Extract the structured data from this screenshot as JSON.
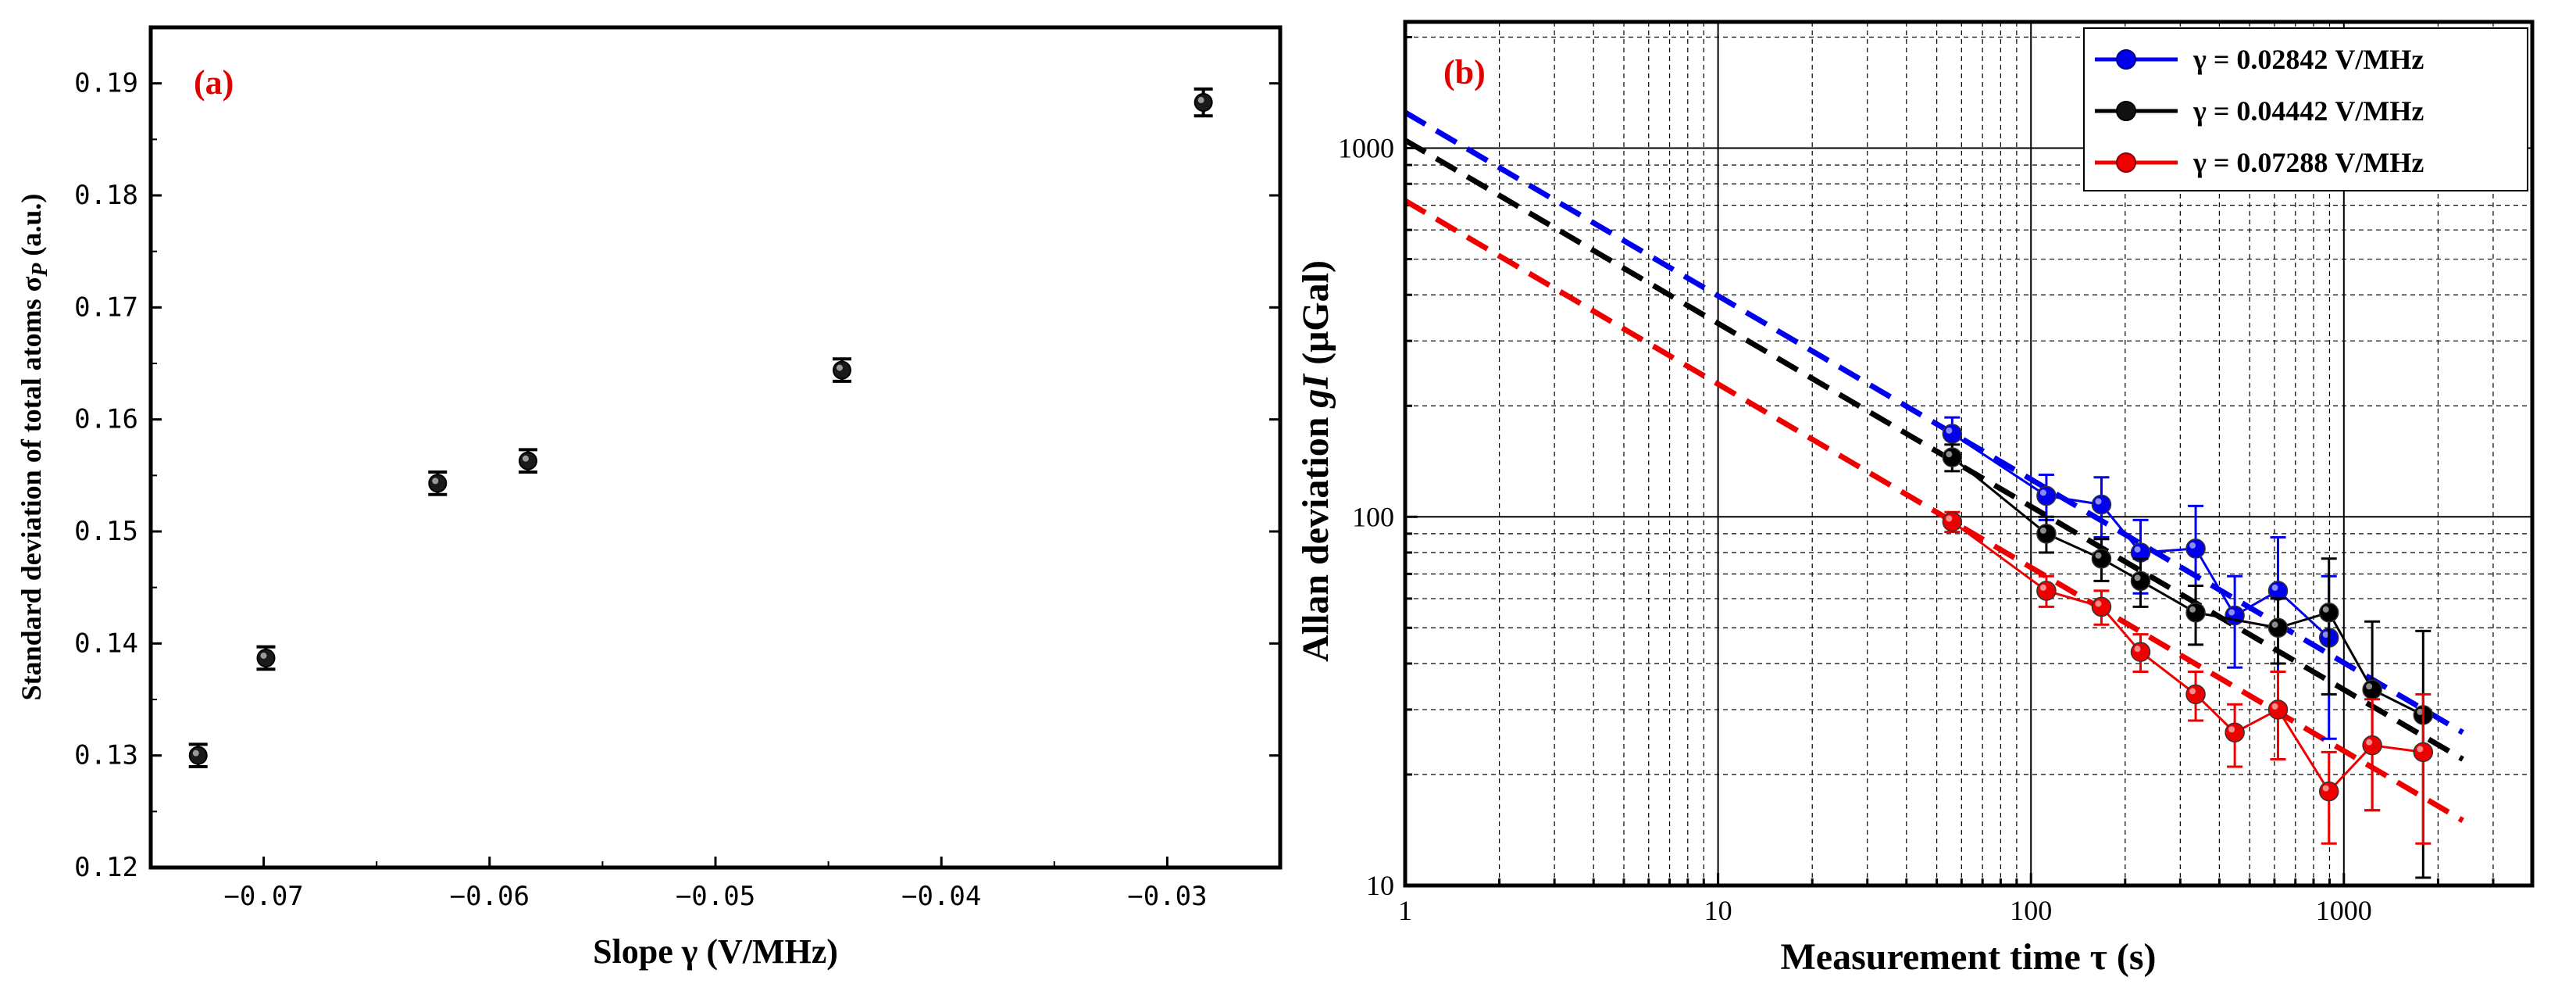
{
  "chart_data": [
    {
      "panel_label": "(a)",
      "type": "scatter",
      "xlabel": "Slope γ (V/MHz)",
      "ylabel": "Standard deviation of  total atoms σP (a.u.)",
      "ylabel_main": "Standard deviation of  total atoms σ",
      "ylabel_sub": "P",
      "ylabel_tail": " (a.u.)",
      "xlim": [
        -0.075,
        -0.025
      ],
      "ylim": [
        0.12,
        0.195
      ],
      "xticks": [
        {
          "value": -0.07,
          "label": "−0.07"
        },
        {
          "value": -0.06,
          "label": "−0.06"
        },
        {
          "value": -0.05,
          "label": "−0.05"
        },
        {
          "value": -0.04,
          "label": "−0.04"
        },
        {
          "value": -0.03,
          "label": "−0.03"
        }
      ],
      "yticks": [
        {
          "value": 0.12,
          "label": "0.12"
        },
        {
          "value": 0.13,
          "label": "0.13"
        },
        {
          "value": 0.14,
          "label": "0.14"
        },
        {
          "value": 0.15,
          "label": "0.15"
        },
        {
          "value": 0.16,
          "label": "0.16"
        },
        {
          "value": 0.17,
          "label": "0.17"
        },
        {
          "value": 0.18,
          "label": "0.18"
        },
        {
          "value": 0.19,
          "label": "0.19"
        }
      ],
      "points": [
        {
          "x": -0.0729,
          "y": 0.13,
          "err": 0.001
        },
        {
          "x": -0.0699,
          "y": 0.1387,
          "err": 0.001
        },
        {
          "x": -0.0623,
          "y": 0.1543,
          "err": 0.001
        },
        {
          "x": -0.0583,
          "y": 0.1563,
          "err": 0.001
        },
        {
          "x": -0.0444,
          "y": 0.1644,
          "err": 0.001
        },
        {
          "x": -0.0284,
          "y": 0.1883,
          "err": 0.0012
        }
      ],
      "marker_color": "#1a1a1a"
    },
    {
      "panel_label": "(b)",
      "type": "line",
      "xscale": "log",
      "yscale": "log",
      "xlabel": "Measurement time τ (s)",
      "ylabel": "Allan deviation gI (μGal)",
      "ylabel_main": "Allan deviation ",
      "ylabel_var": "gI",
      "ylabel_tail": " (μGal)",
      "xlim": [
        1,
        4000
      ],
      "ylim": [
        10,
        2200
      ],
      "xticks": [
        {
          "value": 1,
          "label": "1"
        },
        {
          "value": 10,
          "label": "10"
        },
        {
          "value": 100,
          "label": "100"
        },
        {
          "value": 1000,
          "label": "1000"
        }
      ],
      "yticks": [
        {
          "value": 10,
          "label": "10"
        },
        {
          "value": 100,
          "label": "100"
        },
        {
          "value": 1000,
          "label": "1000"
        }
      ],
      "legend_position": "top-right",
      "series": [
        {
          "name": "γ = 0.02842 V/MHz",
          "color": "#0000ee",
          "x": [
            56,
            112,
            168,
            224,
            336,
            448,
            616,
            896
          ],
          "y": [
            168,
            114,
            108,
            80,
            82,
            54,
            63,
            47
          ],
          "err": [
            18,
            16,
            20,
            18,
            25,
            15,
            25,
            22
          ],
          "fit": {
            "x0": 1,
            "y0": 1250,
            "x1": 2400,
            "y1": 26
          }
        },
        {
          "name": "γ = 0.04442 V/MHz",
          "color": "#000000",
          "x": [
            56,
            112,
            168,
            224,
            336,
            616,
            896,
            1232,
            1792
          ],
          "y": [
            145,
            90,
            77,
            67,
            55,
            50,
            55,
            34,
            29
          ],
          "err": [
            12,
            10,
            10,
            10,
            10,
            10,
            22,
            18,
            20
          ],
          "fit": {
            "x0": 1,
            "y0": 1050,
            "x1": 2400,
            "y1": 22
          }
        },
        {
          "name": "γ = 0.07288 V/MHz",
          "color": "#ee0000",
          "x": [
            56,
            112,
            168,
            224,
            336,
            448,
            616,
            896,
            1232,
            1792
          ],
          "y": [
            97,
            63,
            57,
            43,
            33,
            26,
            30,
            18,
            24,
            23
          ],
          "err": [
            6,
            6,
            6,
            5,
            5,
            5,
            8,
            5,
            8,
            10
          ],
          "fit": {
            "x0": 1,
            "y0": 720,
            "x1": 2400,
            "y1": 15
          }
        }
      ]
    }
  ]
}
